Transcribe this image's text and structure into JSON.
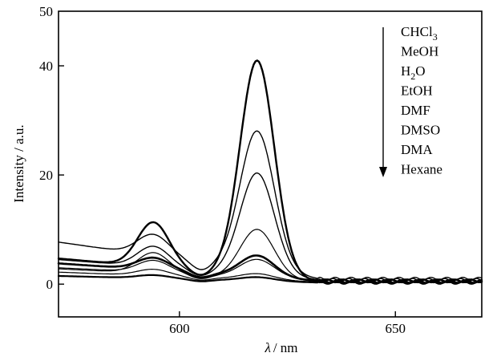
{
  "chart_data": {
    "type": "line",
    "xlabel_symbol": "λ",
    "xlabel_unit": "/ nm",
    "ylabel": "Intensity / a.u.",
    "xlim": [
      572,
      670
    ],
    "ylim": [
      -6,
      50
    ],
    "xticks": [
      600,
      650
    ],
    "yticks": [
      0,
      20,
      40
    ],
    "grid": false,
    "legend_position": "top-right",
    "legend_arrow": "down",
    "legend": [
      {
        "base": "CHCl",
        "sub": "3",
        "tail": ""
      },
      {
        "base": "MeOH",
        "sub": "",
        "tail": ""
      },
      {
        "base": "H",
        "sub": "2",
        "tail": "O"
      },
      {
        "base": "EtOH",
        "sub": "",
        "tail": ""
      },
      {
        "base": "DMF",
        "sub": "",
        "tail": ""
      },
      {
        "base": "DMSO",
        "sub": "",
        "tail": ""
      },
      {
        "base": "DMA",
        "sub": "",
        "tail": ""
      },
      {
        "base": "Hexane",
        "sub": "",
        "tail": ""
      }
    ],
    "series": [
      {
        "baseline_left": 4.7,
        "baseline_right": 0.5,
        "peak1": 11.0,
        "peak2": 40.0,
        "width": 2.4
      },
      {
        "baseline_left": 7.7,
        "baseline_right": 1.0,
        "peak1": 8.5,
        "peak2": 26.5,
        "width": 1.4
      },
      {
        "baseline_left": 4.5,
        "baseline_right": 0.8,
        "peak1": 6.5,
        "peak2": 19.5,
        "width": 1.4
      },
      {
        "baseline_left": 2.8,
        "baseline_right": 0.5,
        "peak1": 5.5,
        "peak2": 9.5,
        "width": 1.2
      },
      {
        "baseline_left": 3.8,
        "baseline_right": 0.6,
        "peak1": 4.5,
        "peak2": 4.5,
        "width": 2.6
      },
      {
        "baseline_left": 3.0,
        "baseline_right": 0.7,
        "peak1": 4.0,
        "peak2": 4.0,
        "width": 1.2
      },
      {
        "baseline_left": 2.2,
        "baseline_right": 0.4,
        "peak1": 2.5,
        "peak2": 1.5,
        "width": 1.2
      },
      {
        "baseline_left": 1.5,
        "baseline_right": 0.3,
        "peak1": 1.5,
        "peak2": 1.0,
        "width": 2.2
      }
    ],
    "peak_positions": [
      594,
      618
    ]
  }
}
